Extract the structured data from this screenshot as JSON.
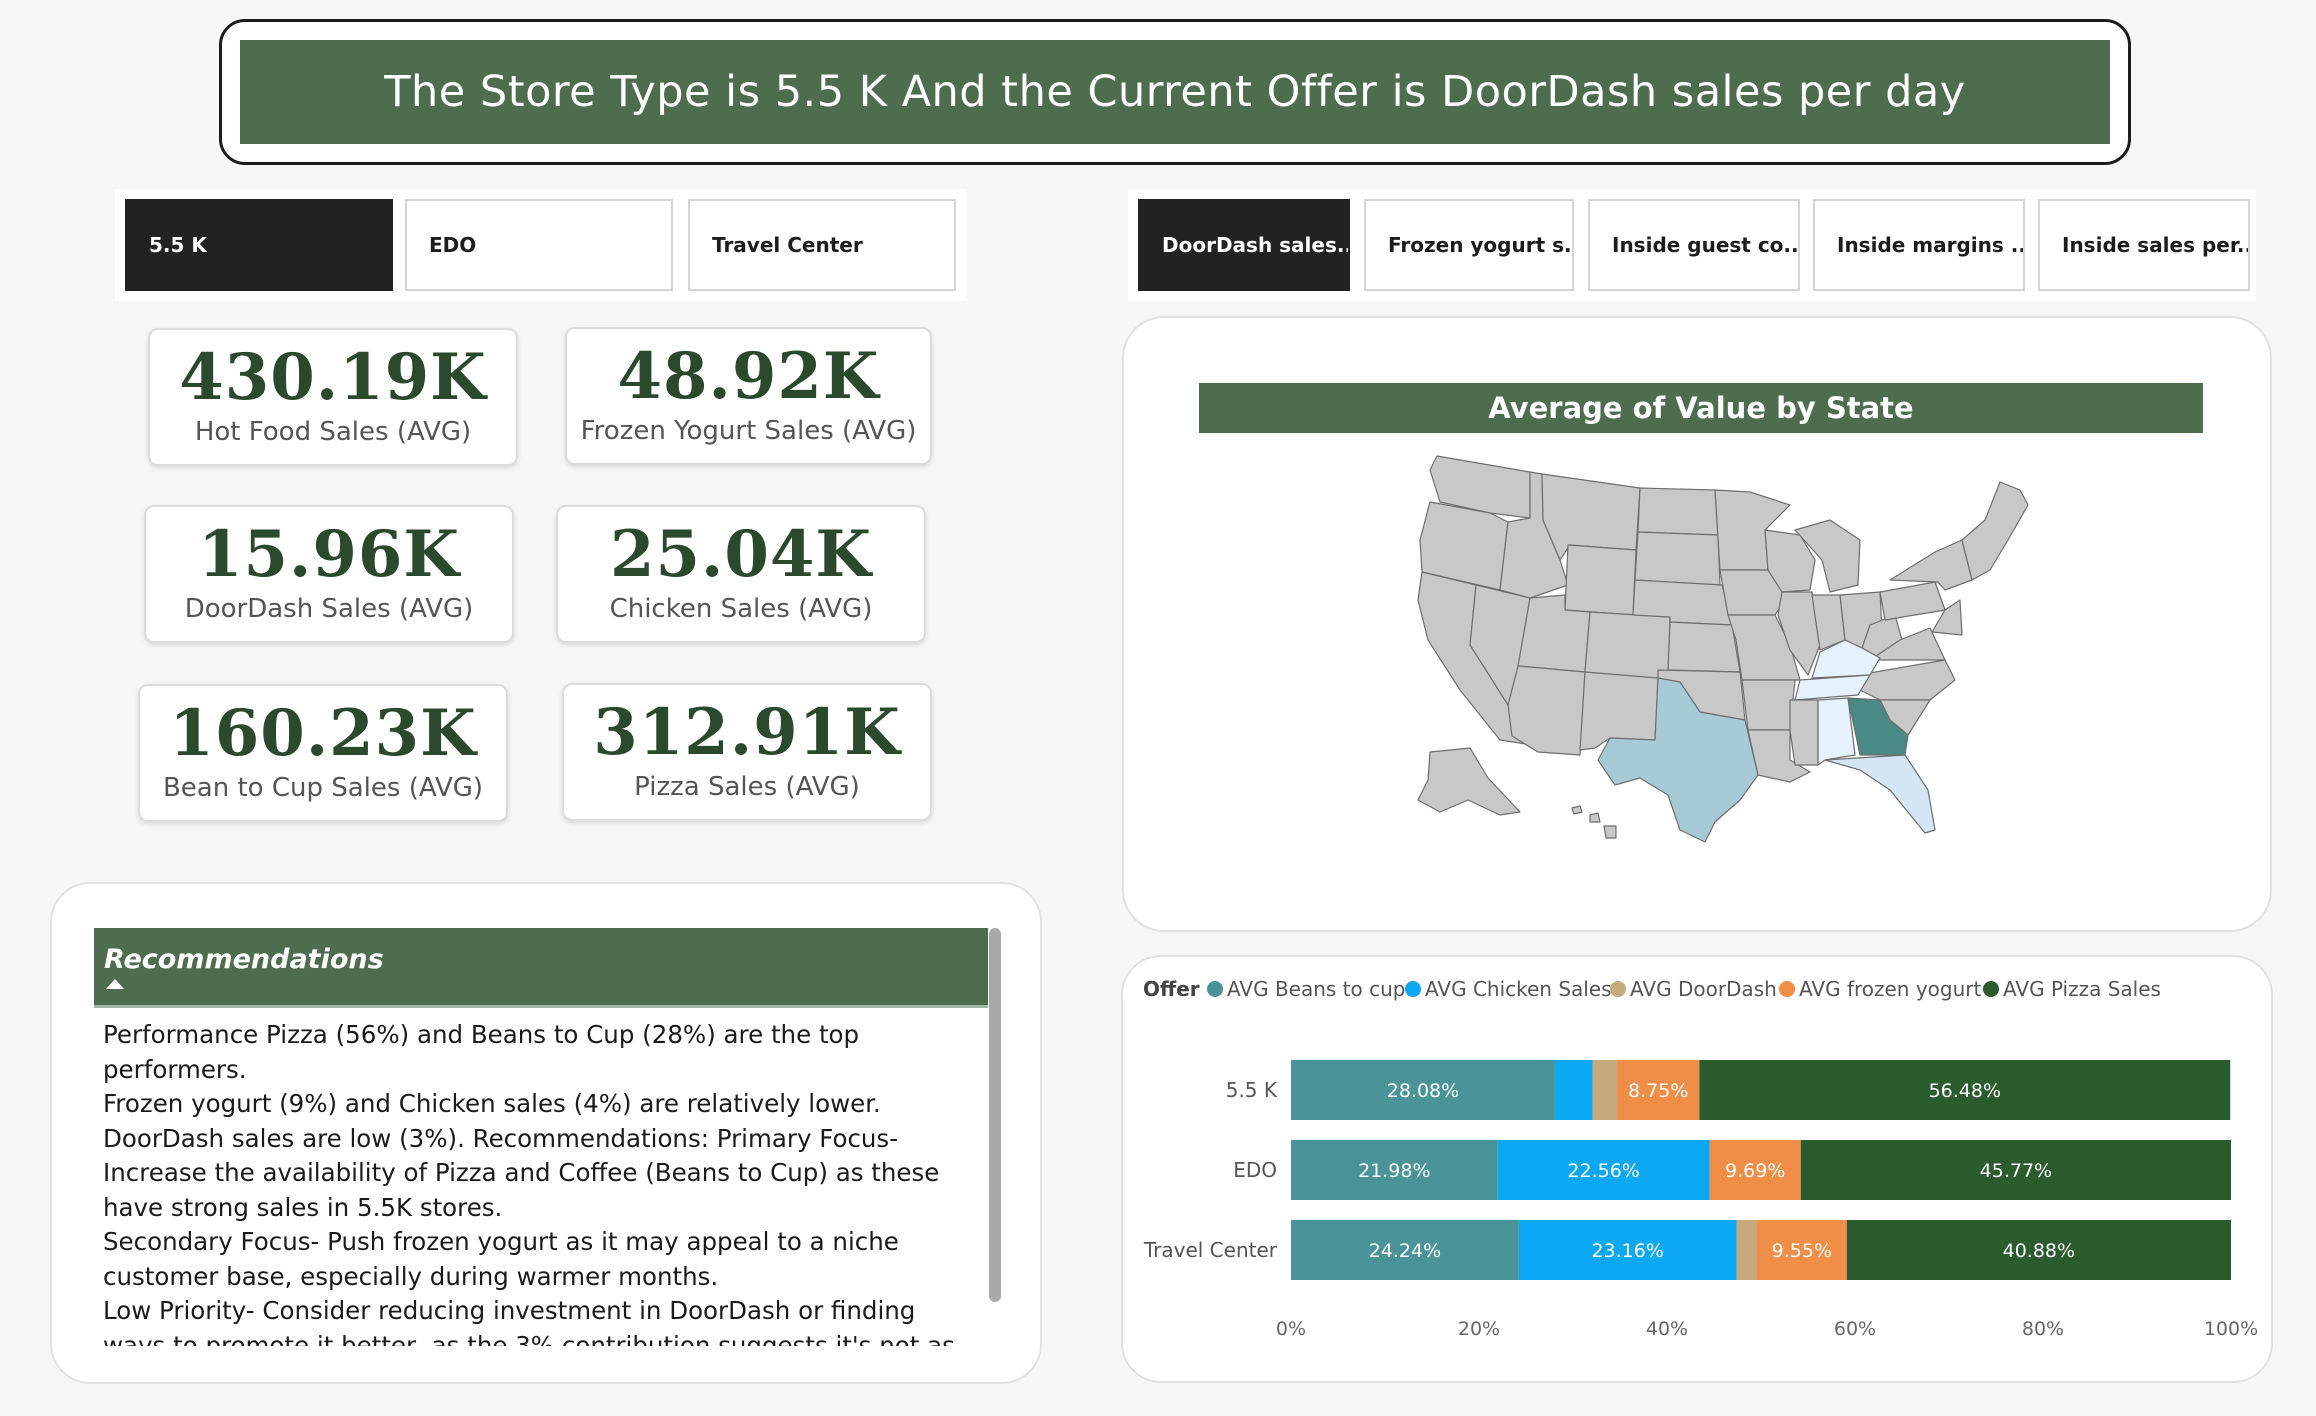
{
  "header": {
    "title": "The Store Type is 5.5 K And the Current Offer is DoorDash sales per day"
  },
  "store_slicer": [
    {
      "label": "5.5 K",
      "selected": true
    },
    {
      "label": "EDO",
      "selected": false
    },
    {
      "label": "Travel Center",
      "selected": false
    }
  ],
  "offer_slicer": [
    {
      "label": "DoorDash sales...",
      "selected": true
    },
    {
      "label": "Frozen yogurt s...",
      "selected": false
    },
    {
      "label": "Inside guest co...",
      "selected": false
    },
    {
      "label": "Inside margins ...",
      "selected": false
    },
    {
      "label": "Inside sales per...",
      "selected": false
    }
  ],
  "kpis": [
    {
      "value": "430.19K",
      "label": "Hot Food Sales (AVG)"
    },
    {
      "value": "48.92K",
      "label": "Frozen Yogurt Sales (AVG)"
    },
    {
      "value": "15.96K",
      "label": "DoorDash Sales (AVG)"
    },
    {
      "value": "25.04K",
      "label": "Chicken Sales (AVG)"
    },
    {
      "value": "160.23K",
      "label": "Bean to Cup Sales (AVG)"
    },
    {
      "value": "312.91K",
      "label": "Pizza Sales (AVG)"
    }
  ],
  "recommendations": {
    "title": "Recommendations",
    "lines": [
      "Performance Pizza (56%) and Beans to Cup (28%) are the top performers.",
      "Frozen yogurt (9%) and Chicken sales (4%) are relatively lower.",
      "DoorDash sales are low (3%). Recommendations: Primary Focus- Increase the availability of Pizza and Coffee (Beans to Cup) as these have strong sales in 5.5K stores.",
      "Secondary Focus- Push frozen yogurt as it may appeal to a niche customer base, especially during warmer months.",
      "Low Priority- Consider reducing investment in DoorDash or finding ways to promote it better, as the 3% contribution suggests it's not as popular in these locations."
    ]
  },
  "map": {
    "title": "Average of Value by State",
    "colors": {
      "default": "#c8c8c8",
      "high": "#4a8a86",
      "mid": "#a6cad6",
      "low": "#d4e6f5",
      "lowest": "#e5f1fc"
    },
    "highlighted": {
      "Georgia": "high",
      "Texas": "mid",
      "Florida": "low",
      "Tennessee": "lowest",
      "Kentucky": "lowest",
      "Alabama": "lowest"
    }
  },
  "chart_data": {
    "type": "bar",
    "orientation": "horizontal",
    "stacked": "100%",
    "legend_title": "Offer",
    "legend_position": "top",
    "categories": [
      "5.5 K",
      "EDO",
      "Travel Center"
    ],
    "series": [
      {
        "name": "AVG Beans to cup",
        "color": "#4a9499",
        "values": [
          28.08,
          21.98,
          24.24
        ],
        "labels": [
          "28.08%",
          "21.98%",
          "24.24%"
        ]
      },
      {
        "name": "AVG Chicken Sales",
        "color": "#0ca8f3",
        "values": [
          4.0,
          22.56,
          23.16
        ],
        "labels": [
          "",
          "22.56%",
          "23.16%"
        ]
      },
      {
        "name": "AVG DoorDash",
        "color": "#c5ab7b",
        "values": [
          2.61,
          0.0,
          2.17
        ],
        "labels": [
          "",
          "",
          ""
        ]
      },
      {
        "name": "AVG frozen yogurt",
        "color": "#f08d46",
        "values": [
          8.75,
          9.69,
          9.55
        ],
        "labels": [
          "8.75%",
          "9.69%",
          "9.55%"
        ]
      },
      {
        "name": "AVG Pizza Sales",
        "color": "#2b5c2e",
        "values": [
          56.48,
          45.77,
          40.88
        ],
        "labels": [
          "56.48%",
          "45.77%",
          "40.88%"
        ]
      }
    ],
    "x_ticks": [
      "0%",
      "20%",
      "40%",
      "60%",
      "80%",
      "100%"
    ],
    "xlim": [
      0,
      100
    ]
  }
}
